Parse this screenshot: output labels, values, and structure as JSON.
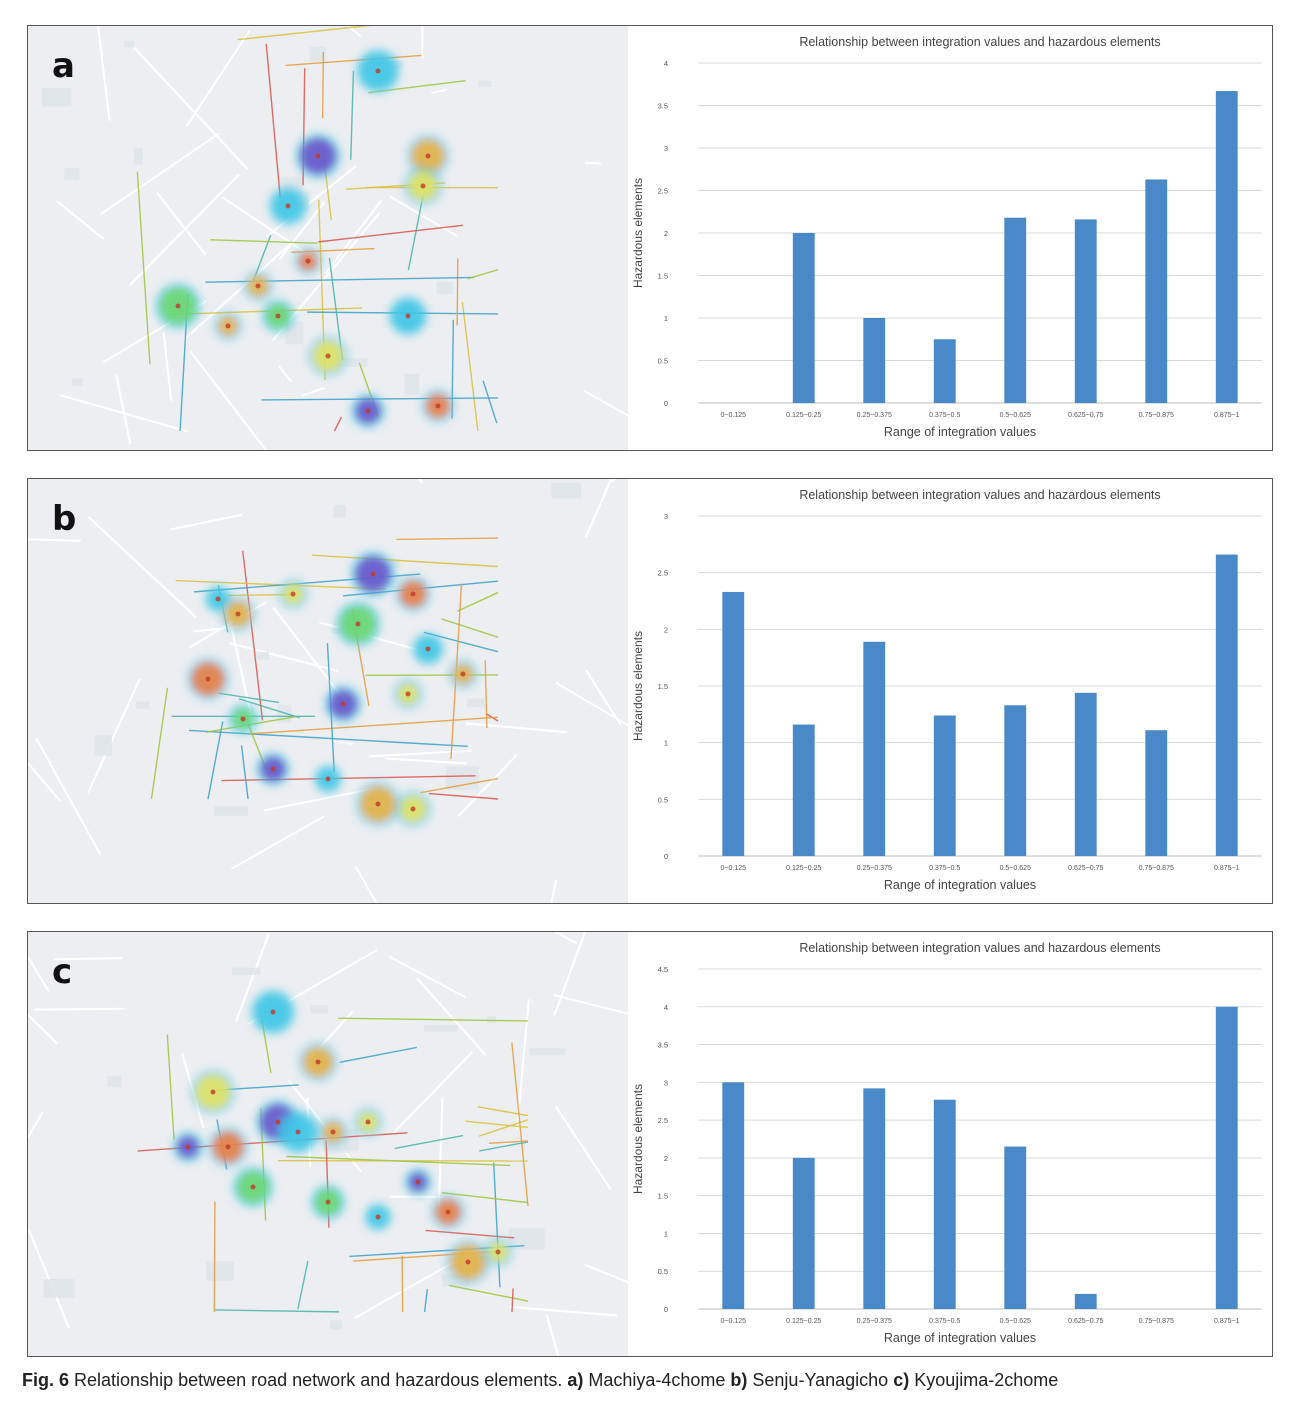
{
  "caption": {
    "fig_label": "Fig. 6",
    "text": " Relationship between road network and hazardous elements. ",
    "a_label": "a)",
    "a_text": " Machiya-4chome ",
    "b_label": "b)",
    "b_text": " Senju-Yanagicho ",
    "c_label": "c)",
    "c_text": " Kyoujima-2chome"
  },
  "panels": [
    {
      "letter": "a"
    },
    {
      "letter": "b"
    },
    {
      "letter": "c"
    }
  ],
  "chart_data": [
    {
      "type": "bar",
      "title": "Relationship between integration values and hazardous elements",
      "xlabel": "Range of integration values",
      "ylabel": "Hazardous elements",
      "categories": [
        "0~0.125",
        "0.125~0.25",
        "0.25~0.375",
        "0.375~0.5",
        "0.5~0.625",
        "0.625~0.75",
        "0.75~0.875",
        "0.875~1"
      ],
      "values": [
        0,
        2,
        1,
        0.75,
        2.18,
        2.16,
        2.63,
        3.67
      ],
      "ylim": [
        0,
        4
      ],
      "yticks": [
        0,
        0.5,
        1,
        1.5,
        2,
        2.5,
        3,
        3.5,
        4
      ],
      "grid": true,
      "color": "#4a89c8"
    },
    {
      "type": "bar",
      "title": "Relationship between integration values and hazardous elements",
      "xlabel": "Range of integration values",
      "ylabel": "Hazardous elements",
      "categories": [
        "0~0.125",
        "0.125~0.25",
        "0.25~0.375",
        "0.375~0.5",
        "0.5~0.625",
        "0.625~0.75",
        "0.75~0.875",
        "0.875~1"
      ],
      "values": [
        2.33,
        1.16,
        1.89,
        1.24,
        1.33,
        1.44,
        1.11,
        2.66
      ],
      "ylim": [
        0,
        3
      ],
      "yticks": [
        0,
        0.5,
        1,
        1.5,
        2,
        2.5,
        3
      ],
      "grid": true,
      "color": "#4a89c8"
    },
    {
      "type": "bar",
      "title": "Relationship between integration values and hazardous elements",
      "xlabel": "Range of integration values",
      "ylabel": "Hazardous elements",
      "categories": [
        "0~0.125",
        "0.125~0.25",
        "0.25~0.375",
        "0.375~0.5",
        "0.5~0.625",
        "0.625~0.75",
        "0.75~0.875",
        "0.875~1"
      ],
      "values": [
        3,
        2,
        2.92,
        2.77,
        2.15,
        0.2,
        0,
        4
      ],
      "ylim": [
        0,
        4.5
      ],
      "yticks": [
        0,
        0.5,
        1,
        1.5,
        2,
        2.5,
        3,
        3.5,
        4,
        4.5
      ],
      "grid": true,
      "color": "#4a89c8"
    }
  ],
  "colors": {
    "bar": "#4a89c8",
    "grid": "#d9d9d9",
    "map_bg": "#eceef1"
  }
}
